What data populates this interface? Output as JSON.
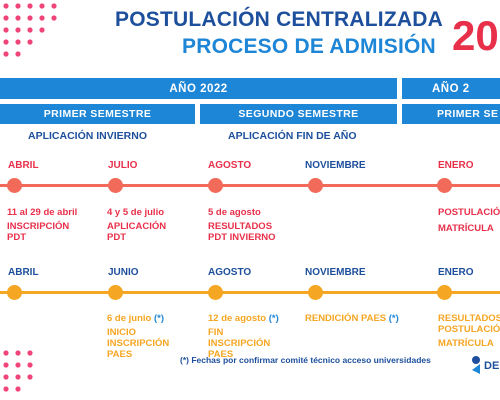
{
  "header": {
    "title_line1": "POSTULACIÓN CENTRALIZADA",
    "title_line2": "PROCESO DE ADMISIÓN",
    "year_partial": "20"
  },
  "colors": {
    "title_dark_blue": "#1d4f9c",
    "accent_blue": "#1e86d6",
    "red": "#e8304a",
    "coral_line": "#f26b5a",
    "orange": "#f5a623",
    "pink_dots": "#f0457a"
  },
  "year_bars": [
    "AÑO 2022",
    "AÑO 2"
  ],
  "semester_bars": [
    "PRIMER SEMESTRE",
    "SEGUNDO SEMESTRE",
    "PRIMER SE"
  ],
  "subheads": [
    "APLICACIÓN INVIERNO",
    "APLICACIÓN FIN DE AÑO"
  ],
  "timeline1": {
    "months": [
      "ABRIL",
      "JULIO",
      "AGOSTO",
      "NOVIEMBRE",
      "ENERO"
    ],
    "events": [
      {
        "date": "11 al 29 de abril",
        "desc1": "INSCRIPCIÓN",
        "desc2": "PDT"
      },
      {
        "date": "4 y 5 de julio",
        "desc1": "APLICACIÓN",
        "desc2": "PDT"
      },
      {
        "date": "5 de agosto",
        "desc1": "RESULTADOS",
        "desc2": "PDT INVIERNO"
      },
      {
        "desc1": "POSTULACIÓ",
        "desc2": "MATRÍCULA"
      }
    ]
  },
  "timeline2": {
    "months": [
      "ABRIL",
      "JUNIO",
      "AGOSTO",
      "NOVIEMBRE",
      "ENERO"
    ],
    "events": [
      {
        "date": "6 de junio",
        "mark": "(*)",
        "desc1": "INICIO",
        "desc2": "INSCRIPCIÓN",
        "desc3": "PAES"
      },
      {
        "date": "12 de agosto",
        "mark": "(*)",
        "desc1": "FIN",
        "desc2": "INSCRIPCIÓN",
        "desc3": "PAES"
      },
      {
        "date": "RENDICIÓN PAES",
        "mark": "(*)"
      },
      {
        "desc1": "RESULTADOS",
        "desc2": "POSTULACIÓ",
        "desc3": "MATRÍCULA"
      }
    ]
  },
  "footnote": "(*) Fechas por confirmar comité técnico acceso universidades",
  "logo_text": "DE"
}
